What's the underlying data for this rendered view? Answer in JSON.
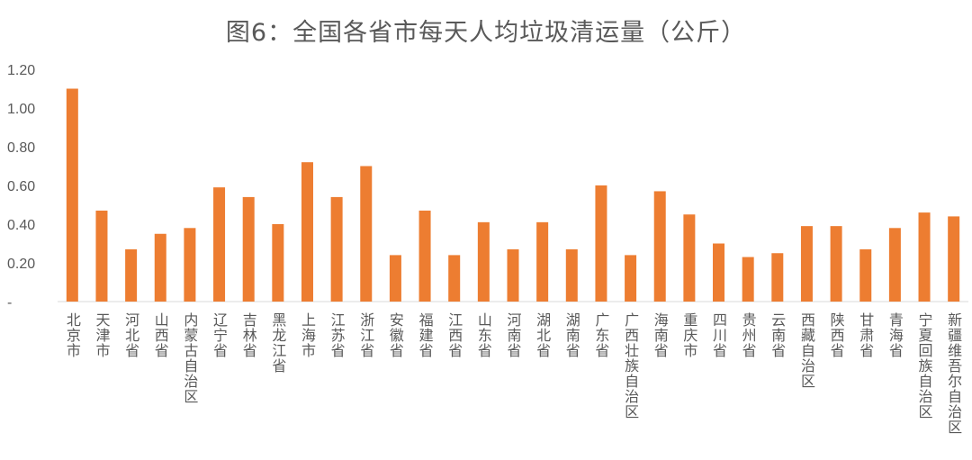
{
  "chart_data": {
    "type": "bar",
    "title": "图6：全国各省市每天人均垃圾清运量（公斤）",
    "xlabel": "",
    "ylabel": "",
    "ylim": [
      0,
      1.2
    ],
    "yticks": [
      0,
      0.2,
      0.4,
      0.6,
      0.8,
      1.0,
      1.2
    ],
    "ytick_labels": [
      "-",
      "0.20",
      "0.40",
      "0.60",
      "0.80",
      "1.00",
      "1.20"
    ],
    "grid": false,
    "legend": "none",
    "bar_color": "#ED7D31",
    "categories": [
      "北京市",
      "天津市",
      "河北省",
      "山西省",
      "内蒙古自治区",
      "辽宁省",
      "吉林省",
      "黑龙江省",
      "上海市",
      "江苏省",
      "浙江省",
      "安徽省",
      "福建省",
      "江西省",
      "山东省",
      "河南省",
      "湖北省",
      "湖南省",
      "广东省",
      "广西壮族自治区",
      "海南省",
      "重庆市",
      "四川省",
      "贵州省",
      "云南省",
      "西藏自治区",
      "陕西省",
      "甘肃省",
      "青海省",
      "宁夏回族自治区",
      "新疆维吾尔自治区"
    ],
    "values": [
      1.1,
      0.47,
      0.27,
      0.35,
      0.38,
      0.59,
      0.54,
      0.4,
      0.72,
      0.54,
      0.7,
      0.24,
      0.47,
      0.24,
      0.41,
      0.27,
      0.41,
      0.27,
      0.6,
      0.24,
      0.57,
      0.45,
      0.3,
      0.23,
      0.25,
      0.39,
      0.39,
      0.27,
      0.38,
      0.46,
      0.44
    ]
  }
}
